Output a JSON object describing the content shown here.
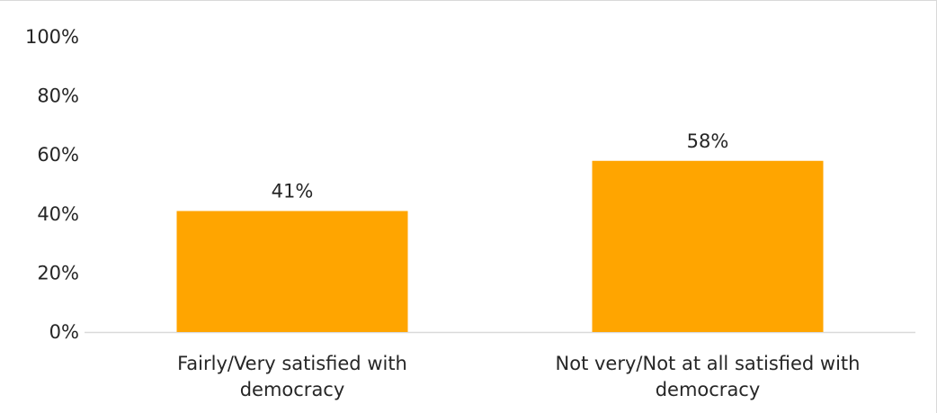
{
  "chart_data": {
    "type": "bar",
    "categories": [
      [
        "Fairly/Very satisfied with",
        "democracy"
      ],
      [
        "Not very/Not at all satisfied with",
        "democracy"
      ]
    ],
    "values": [
      41,
      58
    ],
    "data_labels": [
      "41%",
      "58%"
    ],
    "ylim": [
      0,
      100
    ],
    "yticks": [
      0,
      20,
      40,
      60,
      80,
      100
    ],
    "ytick_labels": [
      "0%",
      "20%",
      "40%",
      "60%",
      "80%",
      "100%"
    ],
    "bar_color": "#FFA500",
    "axis_color": "#d9d9d9",
    "grid": false,
    "legend": "none"
  }
}
